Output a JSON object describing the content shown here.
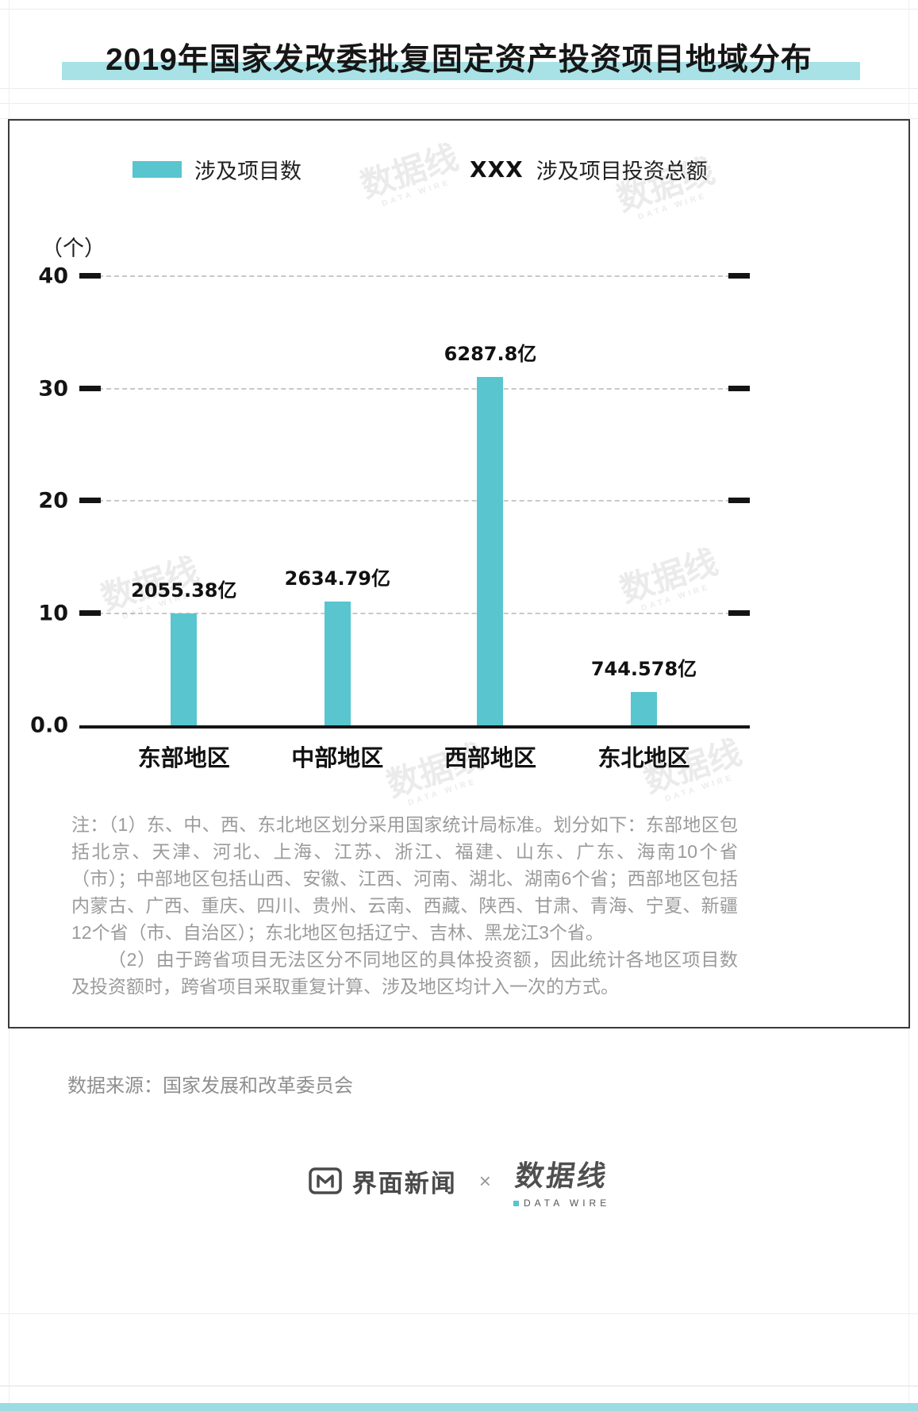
{
  "title": "2019年国家发改委批复固定资产投资项目地域分布",
  "legend": {
    "projects_label": "涉及项目数",
    "investment_marker": "XXX",
    "investment_label": "涉及项目投资总额"
  },
  "chart_data": {
    "type": "bar",
    "title": "2019年国家发改委批复固定资产投资项目地域分布",
    "unit_label": "（个）",
    "categories": [
      "东部地区",
      "中部地区",
      "西部地区",
      "东北地区"
    ],
    "series": [
      {
        "name": "涉及项目数",
        "unit": "个",
        "values": [
          10,
          11,
          31,
          3
        ]
      },
      {
        "name": "涉及项目投资总额",
        "unit": "亿元",
        "value_labels": [
          "2055.38亿",
          "2634.79亿",
          "6287.8亿",
          "744.578亿"
        ],
        "values": [
          2055.38,
          2634.79,
          6287.8,
          744.578
        ]
      }
    ],
    "ylim": [
      0,
      40
    ],
    "y_ticks": [
      40,
      30,
      20,
      10,
      0
    ],
    "y_tick_labels": [
      "40",
      "30",
      "20",
      "10",
      "0.0"
    ],
    "grid": "horizontal-dashed",
    "legend_position": "top",
    "bar_color": "#58c5cf"
  },
  "notes": {
    "p1": "注：（1）东、中、西、东北地区划分采用国家统计局标准。划分如下：东部地区包括北京、天津、河北、上海、江苏、浙江、福建、山东、广东、海南10个省（市）；中部地区包括山西、安徽、江西、河南、湖北、湖南6个省；西部地区包括内蒙古、广西、重庆、四川、贵州、云南、西藏、陕西、甘肃、青海、宁夏、新疆12个省（市、自治区）；东北地区包括辽宁、吉林、黑龙江3个省。",
    "p2": "（2）由于跨省项目无法区分不同地区的具体投资额，因此统计各地区项目数及投资额时，跨省项目采取重复计算、涉及地区均计入一次的方式。"
  },
  "source": "数据来源：国家发展和改革委员会",
  "footer": {
    "left_logo": "界面新闻",
    "separator": "×",
    "right_logo": "数据线",
    "right_logo_sub": "DATA WIRE"
  },
  "watermark": {
    "text": "数据线",
    "sub": "DATA WIRE"
  },
  "colors": {
    "accent": "#58c5cf",
    "highlight": "#a8e2e6"
  }
}
